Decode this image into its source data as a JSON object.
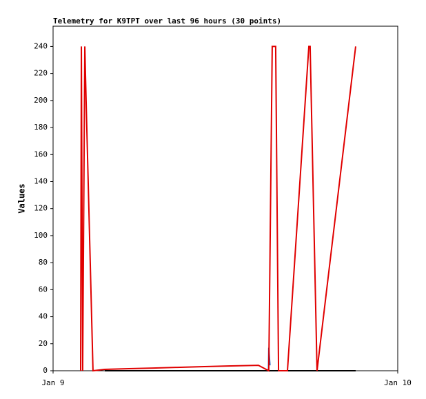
{
  "chart_data": {
    "type": "line",
    "title": "Telemetry for K9TPT over last 96 hours (30 points)",
    "y_label": "Values",
    "xlim": [
      0,
      24
    ],
    "xticks": [
      {
        "value": 0,
        "label": "Jan 9"
      },
      {
        "value": 24,
        "label": "Jan 10"
      }
    ],
    "ylim": [
      0,
      255
    ],
    "yticks": [
      0,
      20,
      40,
      60,
      80,
      100,
      120,
      140,
      160,
      180,
      200,
      220,
      240
    ],
    "series": [
      {
        "color": "#000000",
        "x": [
          3.6,
          21.07
        ],
        "values": [
          0,
          0
        ]
      },
      {
        "color": "#1f5fbf",
        "x": [
          15.0,
          15.02,
          15.1
        ],
        "values": [
          0,
          17,
          4
        ]
      },
      {
        "color": "#e00000",
        "x": [
          1.92,
          1.97,
          2.06,
          2.21,
          2.3,
          2.78,
          3.6,
          5.28,
          6.96,
          8.64,
          10.32,
          12.14,
          14.3,
          15.02,
          15.26,
          15.5,
          15.7,
          16.32,
          17.81,
          17.9,
          18.38,
          21.07
        ],
        "values": [
          0,
          240,
          0,
          240,
          200,
          0,
          1,
          1.5,
          2,
          2.5,
          3,
          3.5,
          4,
          0,
          240,
          240,
          0,
          0,
          240,
          240,
          0,
          240
        ]
      }
    ]
  }
}
